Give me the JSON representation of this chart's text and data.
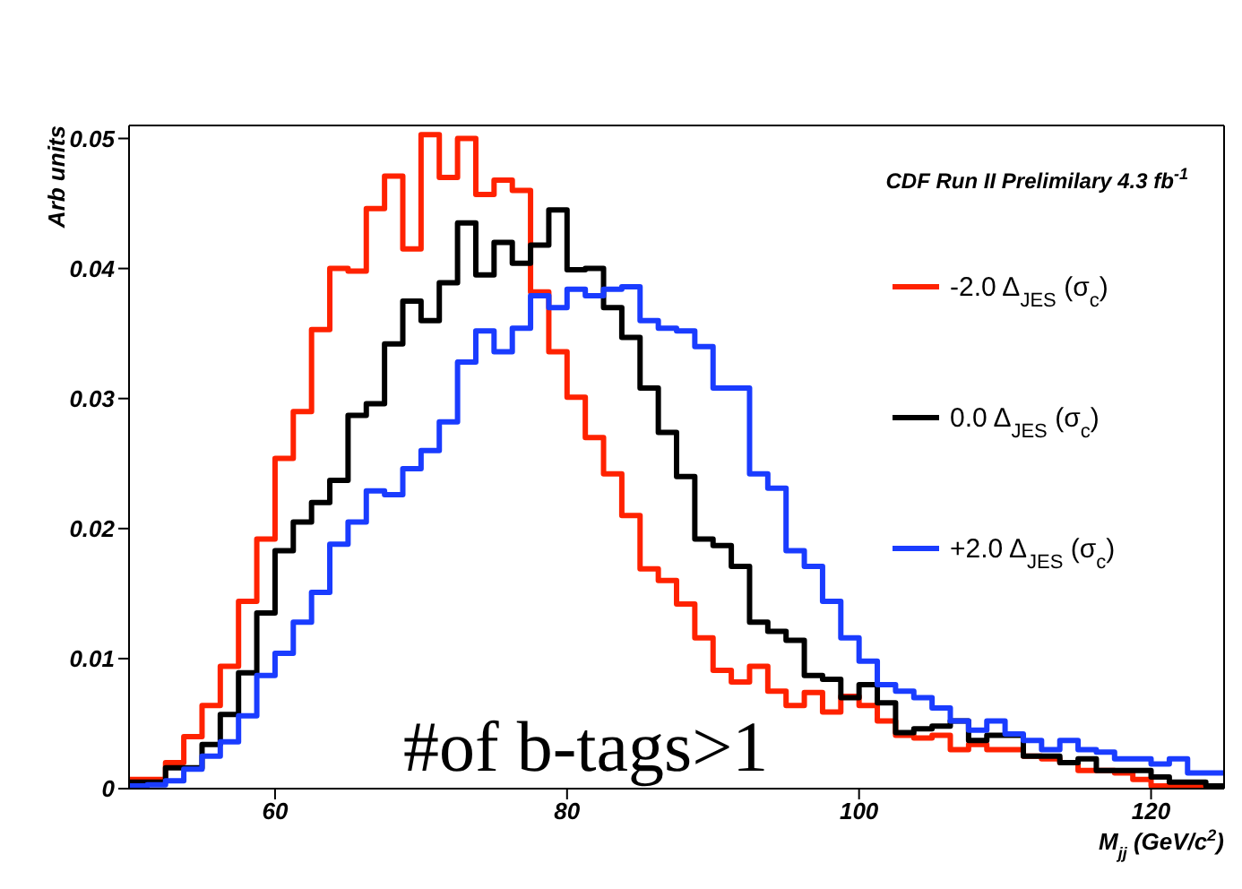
{
  "chart_data": {
    "type": "histogram",
    "xlabel": "M$_{jj}$ (GeV/c$^{2}$)",
    "ylabel": "Arb units",
    "annotations": [
      "CDF Run II Prelimilary 4.3 fb$^{-1}$",
      "#of b-tags>1"
    ],
    "bins": [
      50,
      51.25,
      52.5,
      53.75,
      55,
      56.25,
      57.5,
      58.75,
      60,
      61.25,
      62.5,
      63.75,
      65,
      66.25,
      67.5,
      68.75,
      70,
      71.25,
      72.5,
      73.75,
      75,
      76.25,
      77.5,
      78.75,
      80,
      81.25,
      82.5,
      83.75,
      85,
      86.25,
      87.5,
      88.75,
      90,
      91.25,
      92.5,
      93.75,
      95,
      96.25,
      97.5,
      98.75,
      100,
      101.25,
      102.5,
      103.75,
      105,
      106.25,
      107.5,
      108.75,
      110,
      111.25,
      112.5,
      113.75,
      115,
      116.25,
      117.5,
      118.75,
      120,
      121.25,
      122.5,
      123.75,
      125
    ],
    "series": [
      {
        "name": "-2.0 Δ$_{JES}$ (σ$_{c}$)",
        "color": "#ff2200",
        "values": [
          0.0007,
          0.0007,
          0.002,
          0.004,
          0.0064,
          0.0094,
          0.0144,
          0.0192,
          0.0254,
          0.029,
          0.0353,
          0.04,
          0.0398,
          0.0446,
          0.0471,
          0.0415,
          0.0503,
          0.047,
          0.05,
          0.0457,
          0.0468,
          0.046,
          0.0382,
          0.0336,
          0.0301,
          0.027,
          0.0242,
          0.021,
          0.0169,
          0.016,
          0.0142,
          0.0116,
          0.0091,
          0.0082,
          0.0094,
          0.0075,
          0.0064,
          0.0074,
          0.0059,
          0.0071,
          0.0064,
          0.0052,
          0.0041,
          0.0039,
          0.0041,
          0.003,
          0.0034,
          0.003,
          0.003,
          0.0025,
          0.0023,
          0.002,
          0.0014,
          0.0014,
          0.0012,
          0.0007,
          0.0002,
          0.0002,
          0.0002,
          0.0002
        ]
      },
      {
        "name": "0.0 Δ$_{JES}$ (σ$_{c}$)",
        "color": "#000000",
        "values": [
          0.0005,
          0.0005,
          0.0016,
          0.0016,
          0.0034,
          0.0057,
          0.0089,
          0.0135,
          0.0183,
          0.0205,
          0.022,
          0.0237,
          0.0287,
          0.0296,
          0.0342,
          0.0375,
          0.036,
          0.0389,
          0.0435,
          0.0395,
          0.042,
          0.0404,
          0.0418,
          0.0445,
          0.0399,
          0.04,
          0.037,
          0.0347,
          0.0308,
          0.0274,
          0.024,
          0.0192,
          0.0187,
          0.0171,
          0.0128,
          0.0121,
          0.0114,
          0.0087,
          0.0084,
          0.007,
          0.008,
          0.0066,
          0.0043,
          0.0046,
          0.0048,
          0.0052,
          0.0037,
          0.0041,
          0.0041,
          0.0025,
          0.0025,
          0.002,
          0.0023,
          0.0014,
          0.0014,
          0.0014,
          0.0009,
          0.0005,
          0.0005,
          0.0002
        ]
      },
      {
        "name": "+2.0 Δ$_{JES}$ (σ$_{c}$)",
        "color": "#1a3cff",
        "values": [
          0.0002,
          0.0003,
          0.0006,
          0.0015,
          0.0025,
          0.0036,
          0.0056,
          0.0087,
          0.0104,
          0.0128,
          0.0151,
          0.0188,
          0.0205,
          0.0229,
          0.0226,
          0.0246,
          0.026,
          0.0282,
          0.0328,
          0.0352,
          0.0336,
          0.0354,
          0.0379,
          0.037,
          0.0384,
          0.0379,
          0.0384,
          0.0386,
          0.036,
          0.0354,
          0.0352,
          0.034,
          0.0308,
          0.0308,
          0.0242,
          0.0231,
          0.0183,
          0.0171,
          0.0144,
          0.0116,
          0.0098,
          0.008,
          0.0075,
          0.007,
          0.0062,
          0.0052,
          0.0045,
          0.0052,
          0.0042,
          0.0037,
          0.003,
          0.0037,
          0.003,
          0.0028,
          0.0023,
          0.0023,
          0.0019,
          0.0023,
          0.0012,
          0.0012
        ]
      }
    ],
    "xlim": [
      50,
      125
    ],
    "xticks": [
      60,
      80,
      100,
      120
    ],
    "ylim": [
      0,
      0.051
    ],
    "yticks": [
      0,
      0.01,
      0.02,
      0.03,
      0.04,
      0.05
    ],
    "grid": false,
    "legend": "right",
    "marker": "none",
    "line_style": "solid"
  }
}
